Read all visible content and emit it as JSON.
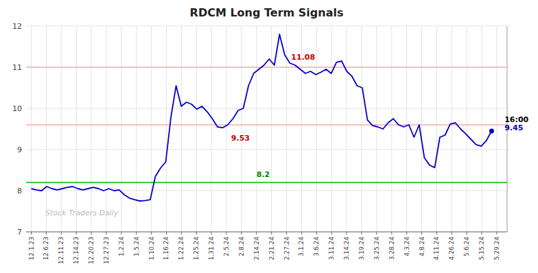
{
  "chart_data": {
    "type": "line",
    "title": "RDCM Long Term Signals",
    "xlim": [
      -1,
      92
    ],
    "xticks": [
      {
        "value": 0,
        "label": "12.1.23"
      },
      {
        "value": 2.9032,
        "label": "12.6.23"
      },
      {
        "value": 5.8065,
        "label": "12.11.23"
      },
      {
        "value": 8.7097,
        "label": "12.14.23"
      },
      {
        "value": 11.6129,
        "label": "12.20.23"
      },
      {
        "value": 14.5161,
        "label": "12.27.23"
      },
      {
        "value": 17.4194,
        "label": "1.2.24"
      },
      {
        "value": 20.3226,
        "label": "1.5.24"
      },
      {
        "value": 23.2258,
        "label": "1.10.24"
      },
      {
        "value": 26.129,
        "label": "1.16.24"
      },
      {
        "value": 29.0323,
        "label": "1.22.24"
      },
      {
        "value": 31.9355,
        "label": "1.25.24"
      },
      {
        "value": 34.8387,
        "label": "1.31.24"
      },
      {
        "value": 37.7419,
        "label": "2.5.24"
      },
      {
        "value": 40.6452,
        "label": "2.8.24"
      },
      {
        "value": 43.5484,
        "label": "2.14.24"
      },
      {
        "value": 46.4516,
        "label": "2.21.24"
      },
      {
        "value": 49.3548,
        "label": "2.27.24"
      },
      {
        "value": 52.2581,
        "label": "3.1.24"
      },
      {
        "value": 55.1613,
        "label": "3.6.24"
      },
      {
        "value": 58.0645,
        "label": "3.11.24"
      },
      {
        "value": 60.9677,
        "label": "3.14.24"
      },
      {
        "value": 63.871,
        "label": "3.19.24"
      },
      {
        "value": 66.7742,
        "label": "3.25.24"
      },
      {
        "value": 69.6774,
        "label": "3.28.24"
      },
      {
        "value": 72.5806,
        "label": "4.3.24"
      },
      {
        "value": 75.4839,
        "label": "4.8.24"
      },
      {
        "value": 78.3871,
        "label": "4.11.24"
      },
      {
        "value": 81.2903,
        "label": "4.26.24"
      },
      {
        "value": 84.1935,
        "label": "5.6.24"
      },
      {
        "value": 87.0968,
        "label": "5.15.24"
      },
      {
        "value": 90,
        "label": "5.29.24"
      }
    ],
    "ylim": [
      7,
      12
    ],
    "yticks": [
      7,
      8,
      9,
      10,
      11,
      12
    ],
    "grid": true,
    "series": [
      {
        "color": "#0000cc",
        "values": [
          8.05,
          8.02,
          8.0,
          8.1,
          8.05,
          8.02,
          8.05,
          8.08,
          8.1,
          8.05,
          8.02,
          8.05,
          8.08,
          8.05,
          8.0,
          8.05,
          8.0,
          8.02,
          7.9,
          7.82,
          7.78,
          7.75,
          7.76,
          7.78,
          8.35,
          8.55,
          8.7,
          9.78,
          10.55,
          10.05,
          10.15,
          10.1,
          9.98,
          10.05,
          9.92,
          9.75,
          9.55,
          9.53,
          9.6,
          9.75,
          9.95,
          10.0,
          10.55,
          10.85,
          10.95,
          11.05,
          11.2,
          11.05,
          11.8,
          11.3,
          11.1,
          11.05,
          10.95,
          10.85,
          10.9,
          10.82,
          10.88,
          10.95,
          10.85,
          11.12,
          11.15,
          10.9,
          10.78,
          10.55,
          10.5,
          9.72,
          9.58,
          9.55,
          9.5,
          9.65,
          9.75,
          9.6,
          9.55,
          9.6,
          9.3,
          9.6,
          8.8,
          8.62,
          8.56,
          9.3,
          9.35,
          9.62,
          9.65,
          9.5,
          9.38,
          9.25,
          9.12,
          9.08,
          9.22,
          9.45
        ]
      }
    ],
    "reference_lines": [
      {
        "value": 8.2,
        "color": "#00bb00"
      },
      {
        "value": 11.0,
        "color": "#ffaaaa"
      },
      {
        "value": 9.6,
        "color": "#ffaaaa"
      }
    ],
    "annotations": [
      {
        "text": "11.08",
        "color": "#cc0000",
        "x": 50.2581,
        "y": 11.18
      },
      {
        "text": "9.53",
        "color": "#cc0000",
        "x": 38.6452,
        "y": 9.22
      },
      {
        "text": "8.2",
        "color": "#008800",
        "x": 43.5484,
        "y": 8.33
      },
      {
        "text": "16:00",
        "color": "#000000",
        "x": 91.5,
        "y": 9.67
      },
      {
        "text": "9.45",
        "color": "#0000cc",
        "x": 91.5,
        "y": 9.47
      },
      {
        "text": "Stock Traders Daily",
        "color": "#bbbbbb"
      }
    ]
  }
}
